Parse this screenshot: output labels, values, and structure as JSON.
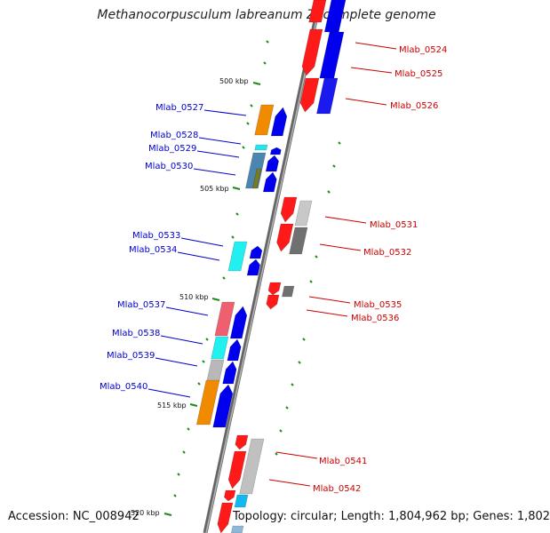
{
  "title": "Methanocorpusculum labreanum Z, complete genome",
  "footer": {
    "accession": "Accession: NC_008942",
    "topology": "Topology: circular; Length: 1,804,962 bp; Genes: 1,802"
  },
  "colors": {
    "forward_label": "#0000cc",
    "reverse_label": "#cc0000",
    "backbone": "#808080",
    "tick": "#1a8a1a"
  },
  "scale_labels": [
    "500 kbp",
    "505 kbp",
    "510 kbp",
    "515 kbp",
    "520 kbp"
  ],
  "genes_left": [
    "Mlab_0527",
    "Mlab_0528",
    "Mlab_0529",
    "Mlab_0530",
    "Mlab_0533",
    "Mlab_0534",
    "Mlab_0537",
    "Mlab_0538",
    "Mlab_0539",
    "Mlab_0540"
  ],
  "genes_right": [
    "Mlab_0524",
    "Mlab_0525",
    "Mlab_0526",
    "Mlab_0531",
    "Mlab_0532",
    "Mlab_0535",
    "Mlab_0536",
    "Mlab_0541",
    "Mlab_0542"
  ]
}
